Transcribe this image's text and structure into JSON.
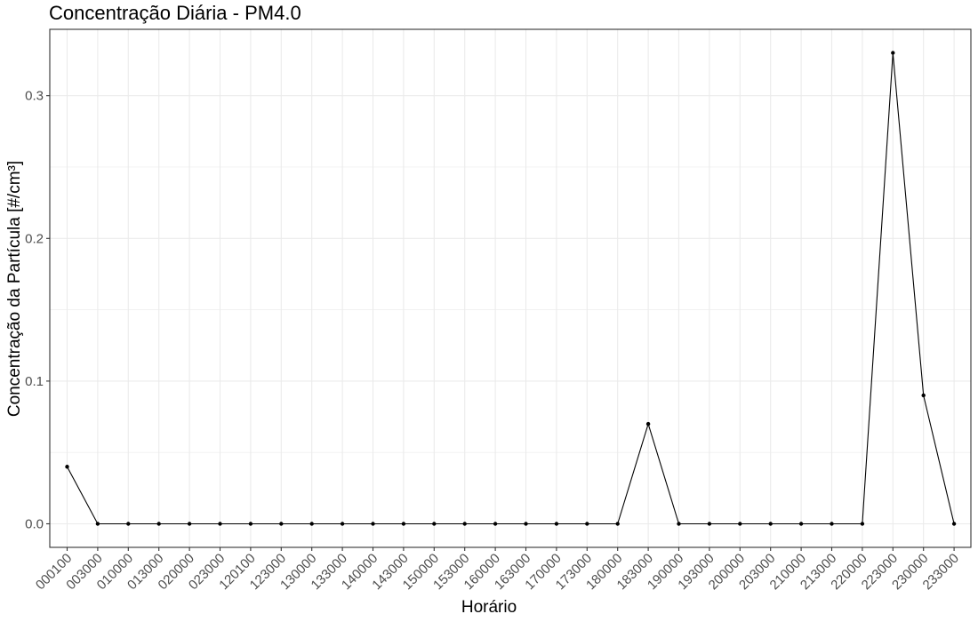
{
  "chart_data": {
    "type": "line",
    "title": "Concentração Diária - PM4.0",
    "xlabel": "Horário",
    "ylabel": "Concentração da Partícula [#/cm³]",
    "categories": [
      "000100",
      "003000",
      "010000",
      "013000",
      "020000",
      "023000",
      "120100",
      "123000",
      "130000",
      "133000",
      "140000",
      "143000",
      "150000",
      "153000",
      "160000",
      "163000",
      "170000",
      "173000",
      "180000",
      "183000",
      "190000",
      "193000",
      "200000",
      "203000",
      "210000",
      "213000",
      "220000",
      "223000",
      "230000",
      "233000"
    ],
    "series": [
      {
        "values": [
          0.04,
          0,
          0,
          0,
          0,
          0,
          0,
          0,
          0,
          0,
          0,
          0,
          0,
          0,
          0,
          0,
          0,
          0,
          0,
          0.07,
          0,
          0,
          0,
          0,
          0,
          0,
          0,
          0.33,
          0.09,
          0
        ]
      }
    ],
    "ylim": [
      -0.0165,
      0.3465
    ],
    "yticks": [
      0.0,
      0.1,
      0.2,
      0.3
    ],
    "ytick_labels": [
      "0.0",
      "0.1",
      "0.2",
      "0.3"
    ],
    "grid": true,
    "line_color": "#000000",
    "grid_color": "#ebebeb",
    "border_color": "#333333",
    "tick_label_color": "#4d4d4d"
  }
}
